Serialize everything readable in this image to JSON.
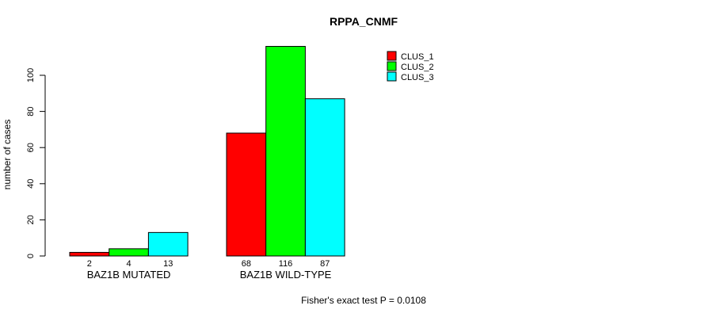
{
  "title": "RPPA_CNMF",
  "y_axis_label": "number of cases",
  "footer": "Fisher's exact test P = 0.0108",
  "legend": {
    "items": [
      {
        "label": "CLUS_1",
        "color": "#ff0000"
      },
      {
        "label": "CLUS_2",
        "color": "#00ff00"
      },
      {
        "label": "CLUS_3",
        "color": "#00ffff"
      }
    ]
  },
  "chart_data": {
    "type": "bar",
    "title": "RPPA_CNMF",
    "ylabel": "number of cases",
    "xlabel": "",
    "categories": [
      "BAZ1B MUTATED",
      "BAZ1B WILD-TYPE"
    ],
    "series": [
      {
        "name": "CLUS_1",
        "color": "#ff0000",
        "values": [
          2,
          68
        ]
      },
      {
        "name": "CLUS_2",
        "color": "#00ff00",
        "values": [
          4,
          116
        ]
      },
      {
        "name": "CLUS_3",
        "color": "#00ffff",
        "values": [
          13,
          87
        ]
      }
    ],
    "bar_value_labels": [
      [
        2,
        4,
        13
      ],
      [
        68,
        116,
        87
      ]
    ],
    "yticks": [
      0,
      20,
      40,
      60,
      80,
      100
    ],
    "ylim": [
      0,
      116
    ],
    "grid": false,
    "bar_border_color": "#000000",
    "legend_position": "top-right",
    "annotation": "Fisher's exact test P = 0.0108"
  }
}
